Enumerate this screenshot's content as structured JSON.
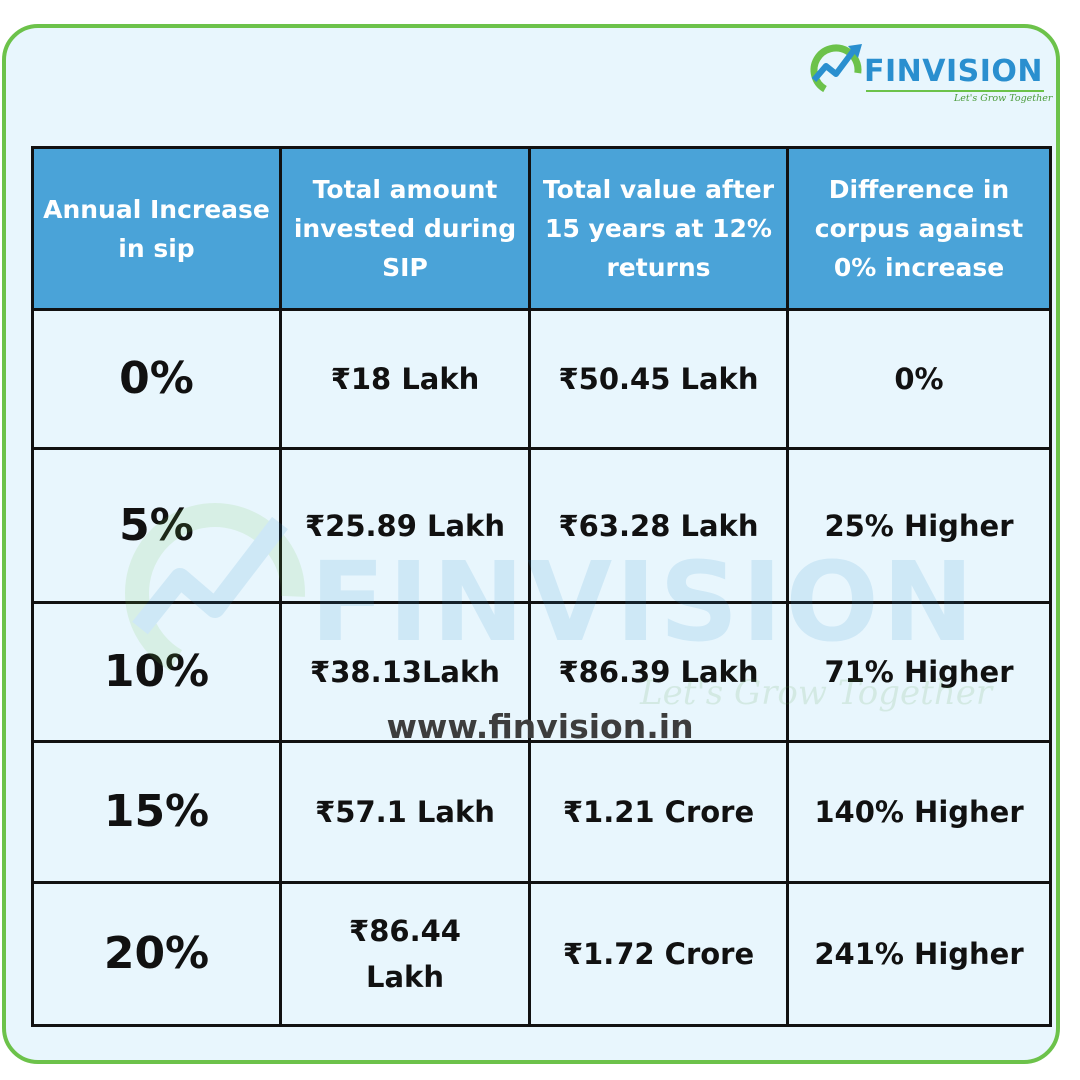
{
  "brand": {
    "name": "FINVISION",
    "tagline": "Let's Grow Together",
    "colors": {
      "blue": "#2a8fcf",
      "green": "#6cc24a",
      "header": "#4aa3d8",
      "background": "#e8f6fd"
    }
  },
  "table": {
    "headers": [
      "Annual Increase in sip",
      "Total amount invested during SIP",
      "Total value after 15 years at 12% returns",
      "Difference in corpus against 0% increase"
    ],
    "rows": [
      [
        "0%",
        "₹18 Lakh",
        "₹50.45 Lakh",
        "0%"
      ],
      [
        "5%",
        "₹25.89 Lakh",
        "₹63.28 Lakh",
        "25% Higher"
      ],
      [
        "10%",
        "₹38.13Lakh",
        "₹86.39 Lakh",
        "71% Higher"
      ],
      [
        "15%",
        "₹57.1 Lakh",
        "₹1.21 Crore",
        "140% Higher"
      ],
      [
        "20%",
        "₹86.44 Lakh",
        "₹1.72 Crore",
        "241% Higher"
      ]
    ]
  },
  "website": "www.finvision.in"
}
